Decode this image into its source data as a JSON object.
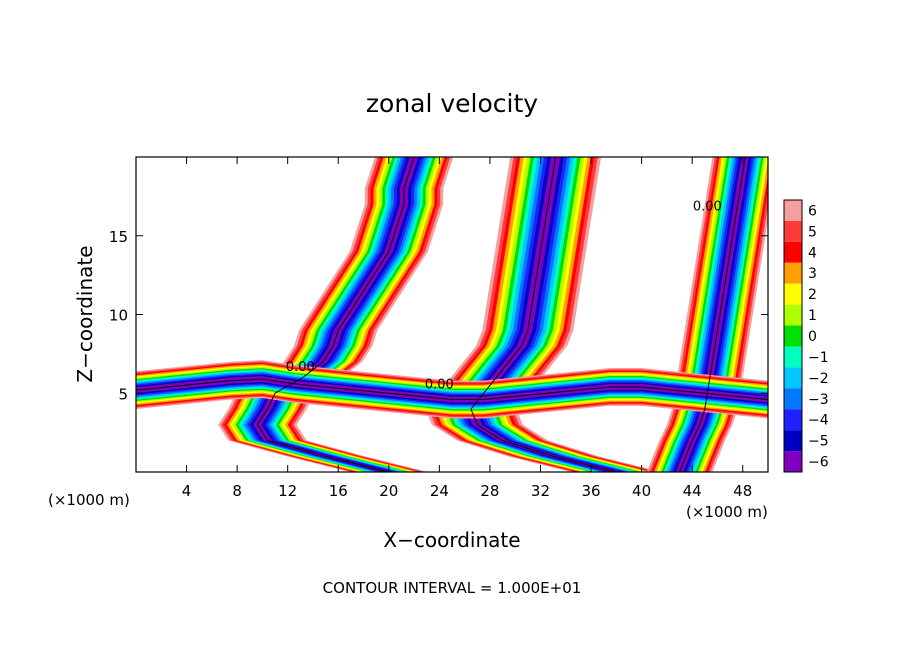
{
  "chart_data": {
    "type": "heatmap",
    "title": "zonal velocity",
    "xlabel": "X−coordinate",
    "ylabel": "Z−coordinate",
    "x_unit_label": "(×1000 m)",
    "z_unit_label": "(×1000 m)",
    "footer": "CONTOUR INTERVAL = 1.000E+01",
    "contour_label": "0.00",
    "xlim": [
      0,
      50
    ],
    "ylim": [
      0,
      20
    ],
    "x_ticks": [
      4,
      8,
      12,
      16,
      20,
      24,
      28,
      32,
      36,
      40,
      44,
      48
    ],
    "y_ticks": [
      5,
      10,
      15
    ],
    "colorbar": {
      "levels": [
        6,
        5,
        4,
        3,
        2,
        1,
        0,
        -1,
        -2,
        -3,
        -4,
        -5,
        -6
      ],
      "labels": [
        "6",
        "5",
        "4",
        "3",
        "2",
        "1",
        "0",
        "−1",
        "−2",
        "−3",
        "−4",
        "−5",
        "−6"
      ],
      "colors": [
        "#f4a0a0",
        "#ff3a3a",
        "#ff0000",
        "#ffa000",
        "#ffff00",
        "#b0ff00",
        "#00e000",
        "#00ffc0",
        "#00c8ff",
        "#0078ff",
        "#2020ff",
        "#0000c0",
        "#8000c0"
      ]
    },
    "bands": [
      {
        "name": "left-jet",
        "z": [
          0,
          20
        ],
        "center": [
          20,
          15,
          10.4,
          9.6,
          10.4,
          11,
          13.2,
          14.8,
          15.6,
          16,
          16.8,
          17.6,
          18.4,
          19.2,
          20,
          20.4,
          20.8,
          21.2,
          21.2,
          21.6,
          22
        ],
        "width": 6
      },
      {
        "name": "mid-jet",
        "z": [
          0,
          20
        ],
        "center": [
          38,
          33,
          29,
          27,
          26.5,
          27.5,
          28.5,
          29.5,
          30.5,
          31,
          31.2,
          31.4,
          31.6,
          31.8,
          32,
          32.2,
          32.4,
          32.6,
          32.8,
          33,
          33.2
        ],
        "width": 7
      },
      {
        "name": "right-jet",
        "z": [
          0,
          20
        ],
        "center": [
          43,
          43.5,
          44,
          44.6,
          45,
          45.2,
          45.4,
          45.6,
          45.8,
          46,
          46.2,
          46.4,
          46.6,
          46.8,
          47,
          47.2,
          47.4,
          47.6,
          47.8,
          48,
          48.2
        ],
        "width": 5
      },
      {
        "name": "low-shear",
        "x": [
          0,
          50
        ],
        "center": [
          5.2,
          5.4,
          5.6,
          5.8,
          5.9,
          5.6,
          5.4,
          5.2,
          5.0,
          4.8,
          4.6,
          4.6,
          4.8,
          5.0,
          5.2,
          5.4,
          5.4,
          5.2,
          5.0,
          4.8,
          4.6
        ],
        "width": 2.2
      }
    ]
  }
}
